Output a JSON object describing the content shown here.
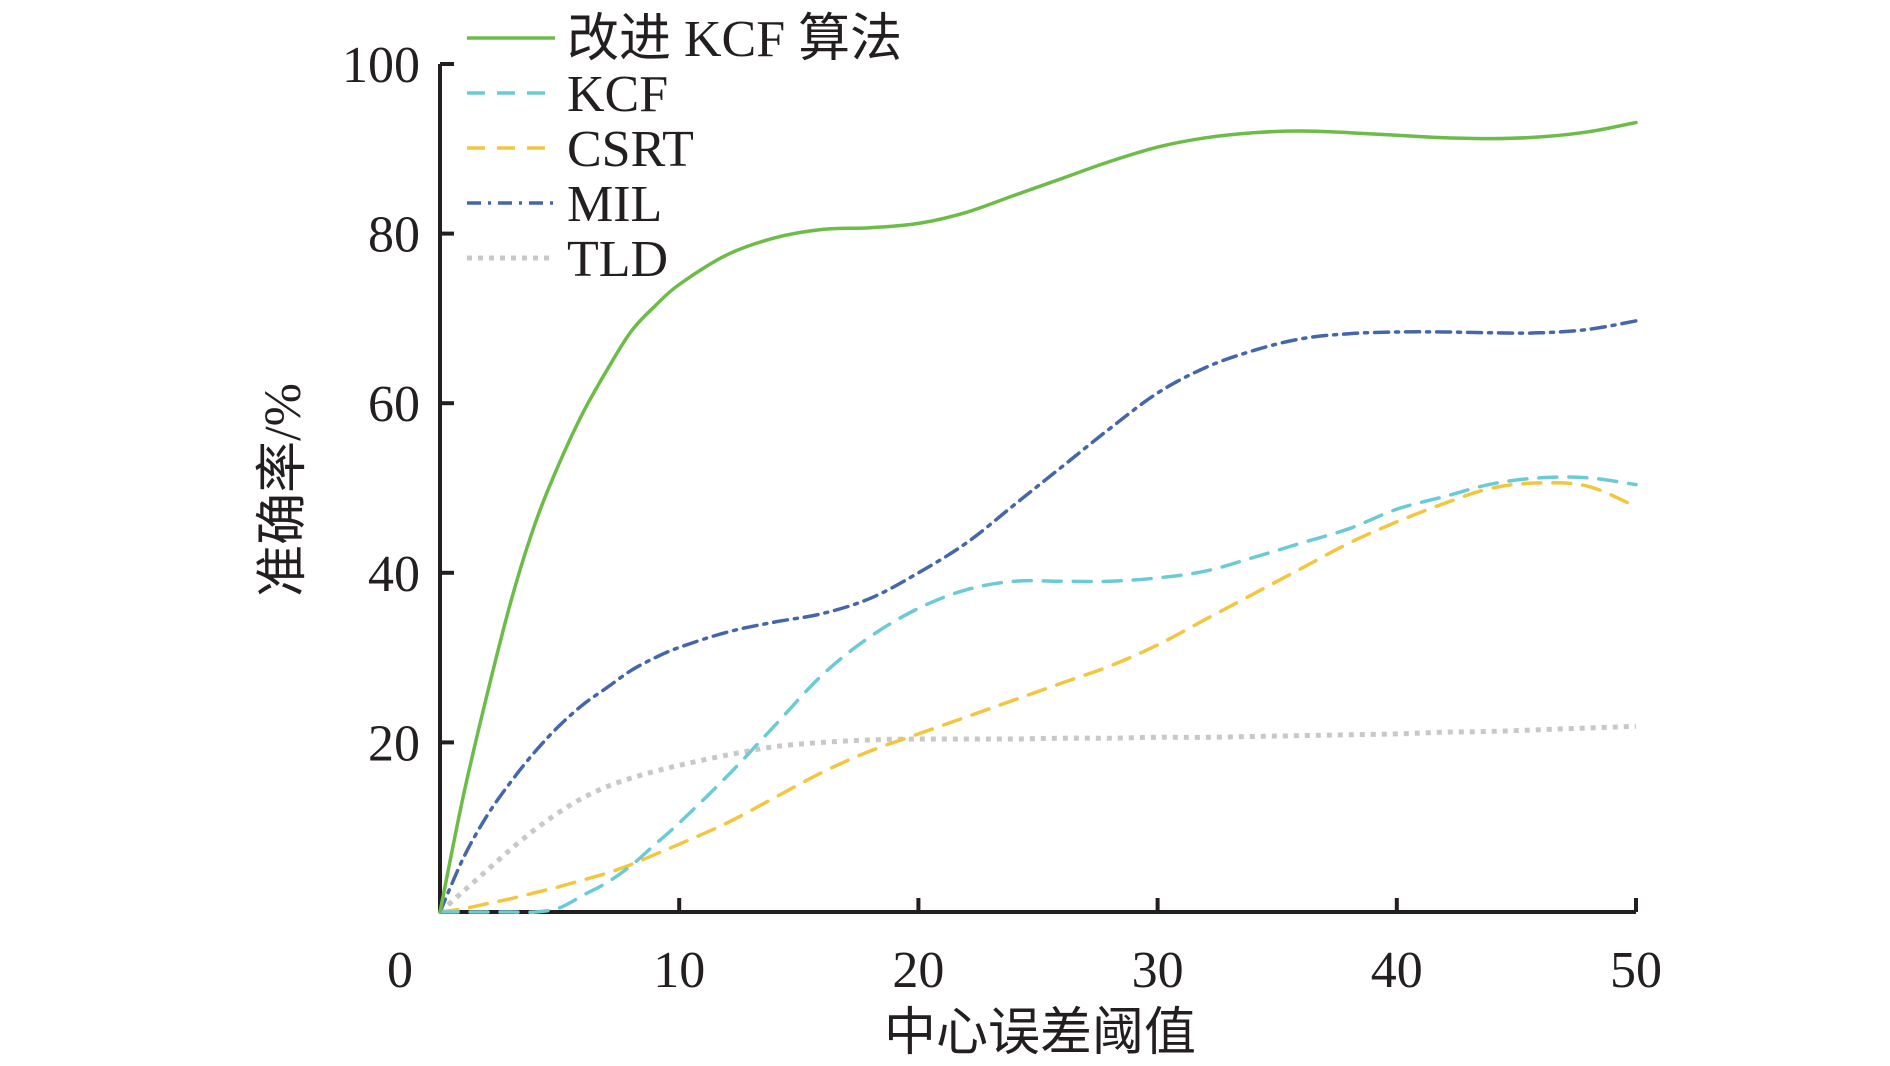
{
  "chart_data": {
    "type": "line",
    "title": "",
    "xlabel": "中心误差阈值",
    "ylabel": "准确率/%",
    "xlim": [
      0,
      50
    ],
    "ylim": [
      0,
      100
    ],
    "x_ticks": [
      "0",
      "10",
      "20",
      "30",
      "40",
      "50"
    ],
    "y_ticks": [
      "20",
      "40",
      "60",
      "80",
      "100"
    ],
    "grid": false,
    "legend_position": "top-left",
    "series": [
      {
        "name": "改进 KCF 算法",
        "color": "#6dbb48",
        "style": "solid",
        "x": [
          0,
          1,
          2,
          3,
          4,
          5,
          6,
          7,
          8,
          9,
          10,
          12,
          14,
          16,
          18,
          20,
          22,
          24,
          26,
          28,
          30,
          32,
          34,
          36,
          38,
          40,
          42,
          44,
          46,
          48,
          50
        ],
        "y": [
          0,
          14,
          26,
          37,
          46,
          53,
          59,
          64,
          68.5,
          71.5,
          74,
          77.5,
          79.5,
          80.5,
          80.7,
          81.2,
          82.5,
          84.5,
          86.5,
          88.5,
          90.2,
          91.3,
          91.9,
          92.1,
          91.9,
          91.6,
          91.3,
          91.2,
          91.4,
          92,
          93.1
        ]
      },
      {
        "name": "KCF",
        "color": "#6ccad4",
        "style": "dashed",
        "x": [
          0,
          1,
          2,
          3,
          4,
          5,
          6,
          7,
          8,
          9,
          10,
          12,
          14,
          16,
          18,
          20,
          22,
          24,
          26,
          28,
          30,
          32,
          34,
          36,
          38,
          40,
          42,
          44,
          46,
          48,
          50
        ],
        "y": [
          0,
          0,
          0,
          0,
          0,
          0.5,
          2,
          3.5,
          5.5,
          8,
          10.5,
          16,
          22,
          28,
          32.5,
          35.8,
          38,
          39,
          39,
          39,
          39.4,
          40.2,
          41.8,
          43.5,
          45.2,
          47.5,
          49,
          50.5,
          51.2,
          51.2,
          50.4
        ]
      },
      {
        "name": "CSRT",
        "color": "#f2c641",
        "style": "dashed",
        "x": [
          0,
          1,
          2,
          3,
          4,
          5,
          6,
          7,
          8,
          9,
          10,
          12,
          14,
          16,
          18,
          20,
          22,
          24,
          26,
          28,
          30,
          32,
          34,
          36,
          38,
          40,
          42,
          44,
          46,
          48,
          50
        ],
        "y": [
          0,
          0.4,
          1,
          1.6,
          2.3,
          3,
          3.8,
          4.6,
          5.6,
          6.8,
          8,
          10.5,
          13.5,
          16.5,
          19,
          21,
          23,
          25,
          27,
          29,
          31.5,
          34.5,
          37.5,
          40.5,
          43.5,
          46,
          48.2,
          50,
          50.6,
          50.2,
          47.8
        ]
      },
      {
        "name": "MIL",
        "color": "#4567aa",
        "style": "dashdot",
        "x": [
          0,
          1,
          2,
          3,
          4,
          5,
          6,
          7,
          8,
          9,
          10,
          12,
          14,
          16,
          18,
          20,
          22,
          24,
          26,
          28,
          30,
          32,
          34,
          36,
          38,
          40,
          42,
          44,
          46,
          48,
          50
        ],
        "y": [
          0,
          6.5,
          11.5,
          15.5,
          19,
          22,
          24.5,
          26.5,
          28.5,
          30,
          31.2,
          33,
          34.2,
          35.2,
          37,
          40,
          43.5,
          48,
          52.5,
          57,
          61.2,
          64.2,
          66.2,
          67.6,
          68.2,
          68.4,
          68.4,
          68.3,
          68.3,
          68.7,
          69.7
        ]
      },
      {
        "name": "TLD",
        "color": "#c8c8c8",
        "style": "dotted",
        "x": [
          0,
          1,
          2,
          3,
          4,
          5,
          6,
          7,
          8,
          9,
          10,
          12,
          14,
          16,
          18,
          20,
          22,
          24,
          26,
          28,
          30,
          32,
          34,
          36,
          38,
          40,
          42,
          44,
          46,
          48,
          50
        ],
        "y": [
          0,
          2.5,
          5,
          7.5,
          9.8,
          11.8,
          13.5,
          14.8,
          15.8,
          16.6,
          17.3,
          18.5,
          19.5,
          20,
          20.3,
          20.4,
          20.4,
          20.4,
          20.5,
          20.5,
          20.6,
          20.6,
          20.7,
          20.8,
          20.9,
          21,
          21.2,
          21.3,
          21.5,
          21.7,
          21.9
        ]
      }
    ]
  }
}
